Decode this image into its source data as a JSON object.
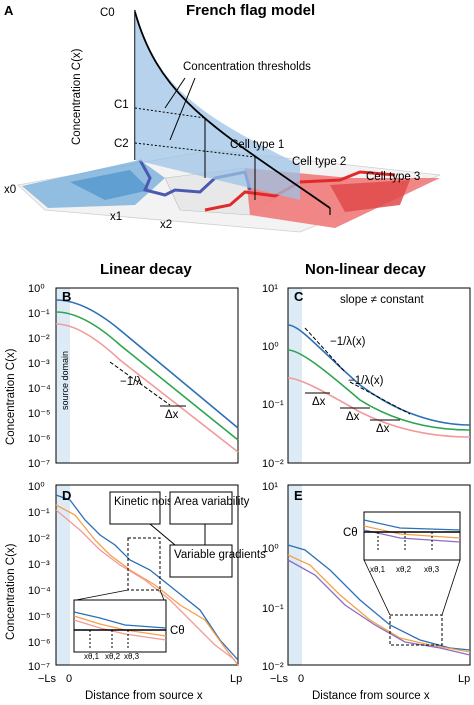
{
  "figure": {
    "panels": {
      "A": {
        "letter": "A",
        "title": "French flag model",
        "y_label": "Concentration C(x)",
        "c0": "C0",
        "c1": "C1",
        "c2": "C2",
        "thresholds": "Concentration thresholds",
        "cell1": "Cell type 1",
        "cell2": "Cell type 2",
        "cell3": "Cell type 3",
        "x0": "x0",
        "x1": "x1",
        "x2": "x2"
      },
      "B": {
        "letter": "B",
        "source_domain": "source domain",
        "slope": "−1/λ",
        "dx": "Δx"
      },
      "C": {
        "letter": "C",
        "slope_note": "slope ≠ constant",
        "slope1": "−1/λ(x)",
        "slope2": "−1/λ(x)",
        "dx": "Δx"
      },
      "D": {
        "letter": "D",
        "kinetic": "Kinetic noise",
        "area": "Area variability",
        "variable": "Variable gradients",
        "ctheta": "Cθ",
        "xt1": "xθ,1",
        "xt2": "xθ,2",
        "xt3": "xθ,3"
      },
      "E": {
        "letter": "E",
        "ctheta": "Cθ",
        "xt1": "xθ,1",
        "xt2": "xθ,2",
        "xt3": "xθ,3"
      }
    },
    "col_titles": {
      "left": "Linear decay",
      "right": "Non-linear decay"
    },
    "y_label": "Concentration C(x)",
    "x_label": "Distance from source x",
    "x_ticks": {
      "ls": "−Ls",
      "zero": "0",
      "lp": "Lp"
    },
    "left_ticks": [
      "10⁰",
      "10⁻¹",
      "10⁻²",
      "10⁻³",
      "10⁻⁴",
      "10⁻⁵",
      "10⁻⁶",
      "10⁻⁷"
    ],
    "right_ticks": [
      "10¹",
      "10⁰",
      "10⁻¹",
      "10⁻²"
    ],
    "colors": {
      "blue": "#2c6fb5",
      "green": "#2ea44f",
      "pink": "#f29a9a",
      "orange": "#f5a04a",
      "purple": "#8a6fc4",
      "source": "#dcebf5",
      "panelA_fill": "#9dc3e6"
    }
  }
}
